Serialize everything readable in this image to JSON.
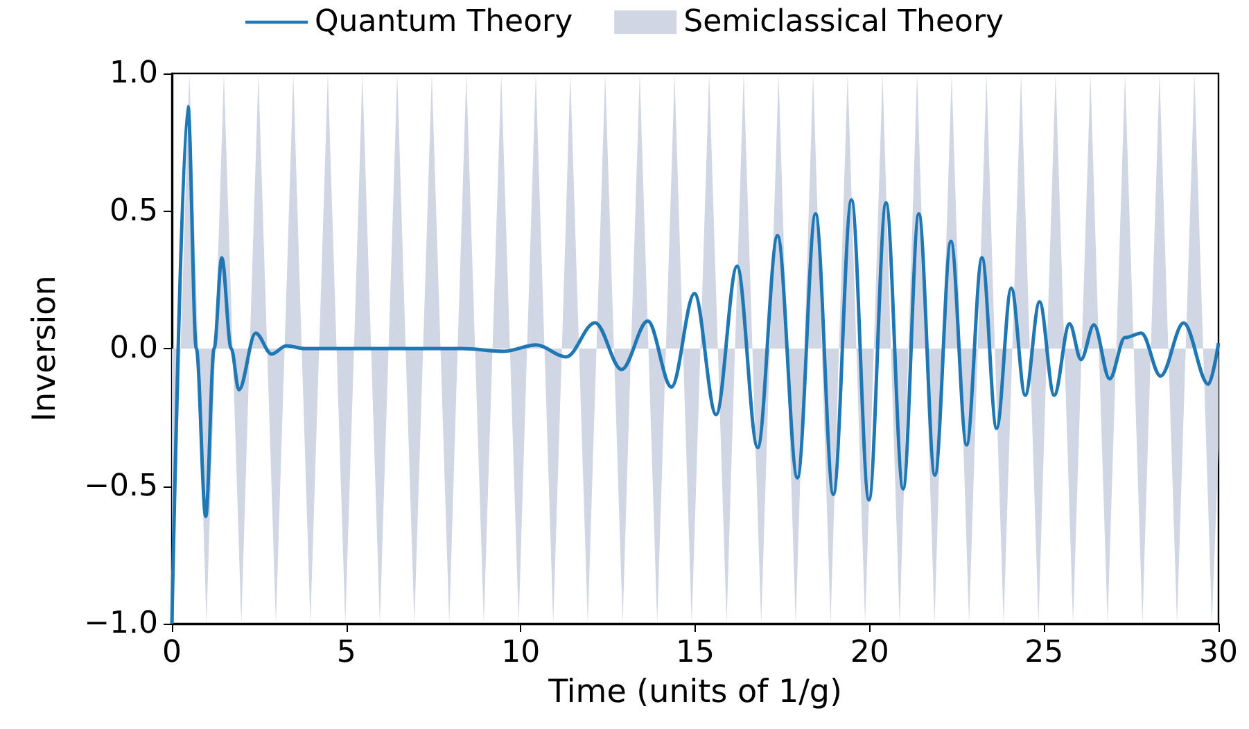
{
  "chart_data": {
    "type": "line",
    "xlabel": "Time (units of 1/g)",
    "ylabel": "Inversion",
    "xlim": [
      0,
      30
    ],
    "xticks": [
      0,
      5,
      10,
      15,
      20,
      25,
      30
    ],
    "ylim": [
      -1,
      1
    ],
    "yticks": [
      {
        "value": -1,
        "label": "−1.0"
      },
      {
        "value": -0.5,
        "label": "−0.5"
      },
      {
        "value": 0,
        "label": "0.0"
      },
      {
        "value": 0.5,
        "label": "0.5"
      },
      {
        "value": 1,
        "label": "1.0"
      }
    ],
    "grid": false,
    "legend": "top",
    "marker": "none",
    "line_style": "solid",
    "series": [
      {
        "name": "Quantum Theory",
        "type": "line",
        "color": "#1f77b4",
        "x": [
          0,
          0.46,
          0.7,
          0.97,
          1.21,
          1.43,
          1.7,
          1.92,
          2.4,
          2.86,
          3.28,
          3.81,
          5,
          6,
          7,
          8.32,
          9.51,
          10.44,
          11.3,
          12.13,
          12.89,
          13.64,
          14.32,
          14.98,
          15.6,
          16.2,
          16.79,
          17.36,
          17.93,
          18.45,
          18.96,
          19.48,
          19.98,
          20.47,
          20.96,
          21.41,
          21.87,
          22.33,
          22.78,
          23.22,
          23.64,
          24.06,
          24.46,
          24.87,
          25.29,
          25.73,
          26.06,
          26.43,
          26.88,
          27.32,
          27.79,
          28.34,
          29,
          29.71,
          30
        ],
        "values": [
          -1,
          0.88,
          0,
          -0.61,
          0,
          0.33,
          0,
          -0.15,
          0.056,
          -0.02,
          0.01,
          0,
          0,
          0,
          0,
          0,
          -0.01,
          0.013,
          -0.03,
          0.094,
          -0.076,
          0.1,
          -0.14,
          0.2,
          -0.24,
          0.3,
          -0.36,
          0.41,
          -0.47,
          0.49,
          -0.53,
          0.54,
          -0.55,
          0.53,
          -0.51,
          0.49,
          -0.46,
          0.39,
          -0.35,
          0.33,
          -0.29,
          0.22,
          -0.17,
          0.17,
          -0.17,
          0.09,
          -0.04,
          0.086,
          -0.11,
          0.04,
          0.056,
          -0.1,
          0.093,
          -0.13,
          0.02
        ]
      },
      {
        "name": "Semiclassical Theory",
        "type": "area",
        "color": "#d0d6e4",
        "x": [
          0,
          0.25,
          0.5,
          0.75,
          0.99,
          1.24,
          1.49,
          1.74,
          1.99,
          2.23,
          2.48,
          2.73,
          2.98,
          3.23,
          3.48,
          3.72,
          3.97,
          4.22,
          4.47,
          4.72,
          4.97,
          5.22,
          5.46,
          5.71,
          5.96,
          6.21,
          6.46,
          6.7,
          6.95,
          7.2,
          7.45,
          7.7,
          7.95,
          8.19,
          8.44,
          8.69,
          8.94,
          9.19,
          9.44,
          9.69,
          9.94,
          10.18,
          10.43,
          10.68,
          10.93,
          11.18,
          11.42,
          11.67,
          11.92,
          12.17,
          12.42,
          12.67,
          12.92,
          13.16,
          13.41,
          13.66,
          13.91,
          14.16,
          14.41,
          14.65,
          14.9,
          15.15,
          15.4,
          15.65,
          15.9,
          16.14,
          16.39,
          16.64,
          16.89,
          17.14,
          17.39,
          17.63,
          17.88,
          18.13,
          18.38,
          18.63,
          18.88,
          19.12,
          19.37,
          19.62,
          19.87,
          20.12,
          20.37,
          20.61,
          20.86,
          21.11,
          21.36,
          21.61,
          21.86,
          22.1,
          22.35,
          22.6,
          22.85,
          23.1,
          23.35,
          23.59,
          23.84,
          24.09,
          24.34,
          24.59,
          24.84,
          25.08,
          25.33,
          25.58,
          25.83,
          26.08,
          26.33,
          26.57,
          26.82,
          27.07,
          27.32,
          27.57,
          27.82,
          28.06,
          28.31,
          28.56,
          28.81,
          29.06,
          29.31,
          29.56,
          29.81,
          30
        ],
        "values": [
          -1,
          0,
          1,
          0,
          -1,
          0,
          1,
          0,
          -1,
          0,
          1,
          0,
          -1,
          0,
          1,
          0,
          -1,
          0,
          1,
          0,
          -1,
          0,
          1,
          0,
          -1,
          0,
          1,
          0,
          -1,
          0,
          1,
          0,
          -1,
          0,
          1,
          0,
          -1,
          0,
          1,
          0,
          -1,
          0,
          1,
          0,
          -1,
          0,
          1,
          0,
          -1,
          0,
          1,
          0,
          -1,
          0,
          1,
          0,
          -1,
          0,
          1,
          0,
          -1,
          0,
          1,
          0,
          -1,
          0,
          1,
          0,
          -1,
          0,
          1,
          0,
          -1,
          0,
          1,
          0,
          -1,
          0,
          1,
          0,
          -1,
          0,
          1,
          0,
          -1,
          0,
          1,
          0,
          -1,
          0,
          1,
          0,
          -1,
          0,
          1,
          0,
          -1,
          0,
          1,
          0,
          -1,
          0,
          1,
          0,
          -1,
          0,
          1,
          0,
          -1,
          0,
          1,
          0,
          -1,
          0,
          1,
          0,
          -1,
          0,
          1,
          0,
          -1,
          -0.36
        ]
      }
    ]
  }
}
